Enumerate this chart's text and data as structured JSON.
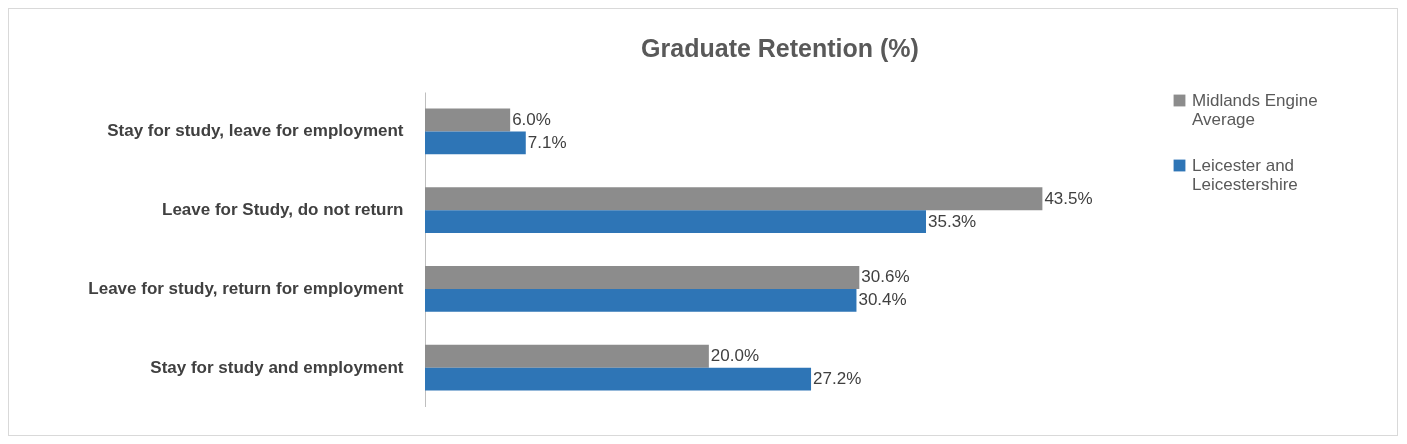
{
  "chart_data": {
    "type": "bar",
    "orientation": "horizontal",
    "title": "Graduate Retention (%)",
    "categories": [
      "Stay for study, leave for employment",
      "Leave for Study, do not return",
      "Leave for study, return for employment",
      "Stay for study and employment"
    ],
    "series": [
      {
        "name": "Midlands Engine Average",
        "color": "#8c8c8c",
        "values": [
          6.0,
          43.5,
          30.6,
          20.0
        ],
        "value_labels": [
          "6.0%",
          "43.5%",
          "30.6%",
          "20.0%"
        ]
      },
      {
        "name": "Leicester and Leicestershire",
        "color": "#2e75b6",
        "values": [
          7.1,
          35.3,
          30.4,
          27.2
        ],
        "value_labels": [
          "7.1%",
          "35.3%",
          "30.4%",
          "27.2%"
        ]
      }
    ],
    "legend": "right",
    "relative": false
  }
}
